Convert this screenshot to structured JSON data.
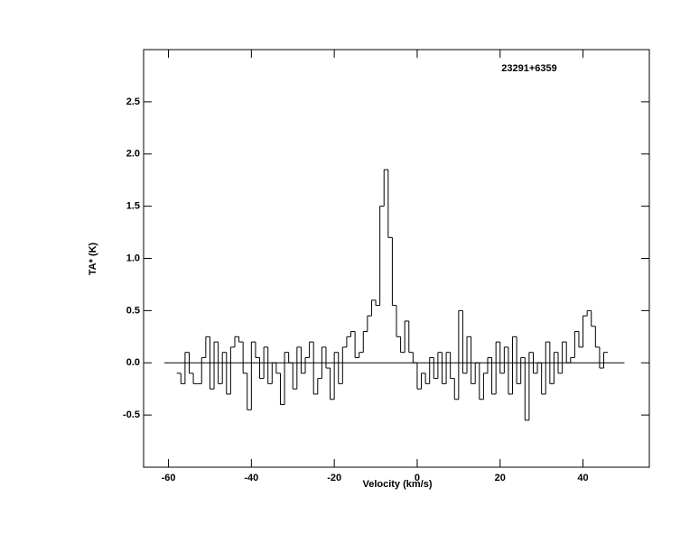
{
  "chart_data": {
    "type": "step",
    "annotation": "23291+6359",
    "xlabel": "Velocity (km/s)",
    "ylabel": "TA* (K)",
    "xlim": [
      -66,
      56
    ],
    "ylim": [
      -1,
      3
    ],
    "xticks": [
      -60,
      -40,
      -20,
      0,
      20,
      40
    ],
    "yticks": [
      -0.5,
      {
        "value": 0,
        "label": "0.0"
      },
      0.5,
      {
        "value": 1,
        "label": "1.0"
      },
      1.5,
      {
        "value": 2,
        "label": "2.0"
      },
      2.5
    ],
    "hline": 0,
    "hline_xrange": [
      -61,
      50
    ],
    "color": "#000000",
    "x": [
      -57.5,
      -56.5,
      -55.5,
      -54.5,
      -53.5,
      -52.5,
      -51.5,
      -50.5,
      -49.5,
      -48.5,
      -47.5,
      -46.5,
      -45.5,
      -44.5,
      -43.5,
      -42.5,
      -41.5,
      -40.5,
      -39.5,
      -38.5,
      -37.5,
      -36.5,
      -35.5,
      -34.5,
      -33.5,
      -32.5,
      -31.5,
      -30.5,
      -29.5,
      -28.5,
      -27.5,
      -26.5,
      -25.5,
      -24.5,
      -23.5,
      -22.5,
      -21.5,
      -20.5,
      -19.5,
      -18.5,
      -17.5,
      -16.5,
      -15.5,
      -14.5,
      -13.5,
      -12.5,
      -11.5,
      -10.5,
      -9.5,
      -8.5,
      -7.5,
      -6.5,
      -5.5,
      -4.5,
      -3.5,
      -2.5,
      -1.5,
      -0.5,
      0.5,
      1.5,
      2.5,
      3.5,
      4.5,
      5.5,
      6.5,
      7.5,
      8.5,
      9.5,
      10.5,
      11.5,
      12.5,
      13.5,
      14.5,
      15.5,
      16.5,
      17.5,
      18.5,
      19.5,
      20.5,
      21.5,
      22.5,
      23.5,
      24.5,
      25.5,
      26.5,
      27.5,
      28.5,
      29.5,
      30.5,
      31.5,
      32.5,
      33.5,
      34.5,
      35.5,
      36.5,
      37.5,
      38.5,
      39.5,
      40.5,
      41.5,
      42.5,
      43.5,
      44.5,
      45.5
    ],
    "values": [
      -0.1,
      -0.2,
      0.1,
      -0.1,
      -0.2,
      -0.2,
      0.05,
      0.25,
      -0.25,
      0.2,
      -0.2,
      0.1,
      -0.3,
      0.15,
      0.25,
      0.2,
      -0.1,
      -0.45,
      0.2,
      0.05,
      -0.15,
      0.15,
      -0.2,
      0.0,
      -0.1,
      -0.4,
      0.1,
      0.0,
      -0.25,
      0.15,
      -0.1,
      0.05,
      0.2,
      -0.3,
      -0.15,
      0.15,
      -0.05,
      -0.35,
      0.1,
      -0.2,
      0.15,
      0.25,
      0.3,
      0.05,
      0.1,
      0.3,
      0.45,
      0.6,
      0.55,
      1.5,
      1.85,
      1.2,
      0.55,
      0.25,
      0.1,
      0.4,
      0.1,
      0.0,
      -0.25,
      -0.1,
      -0.2,
      0.05,
      -0.15,
      0.1,
      -0.2,
      0.1,
      -0.15,
      -0.35,
      0.5,
      -0.1,
      0.25,
      -0.2,
      0.0,
      -0.35,
      -0.1,
      0.05,
      -0.3,
      0.2,
      -0.1,
      0.15,
      -0.3,
      0.25,
      -0.2,
      0.05,
      -0.55,
      0.1,
      -0.1,
      0.0,
      -0.3,
      0.2,
      -0.2,
      0.1,
      -0.1,
      0.2,
      0.0,
      0.05,
      0.3,
      0.15,
      0.45,
      0.5,
      0.35,
      0.15,
      -0.05,
      0.1
    ]
  }
}
